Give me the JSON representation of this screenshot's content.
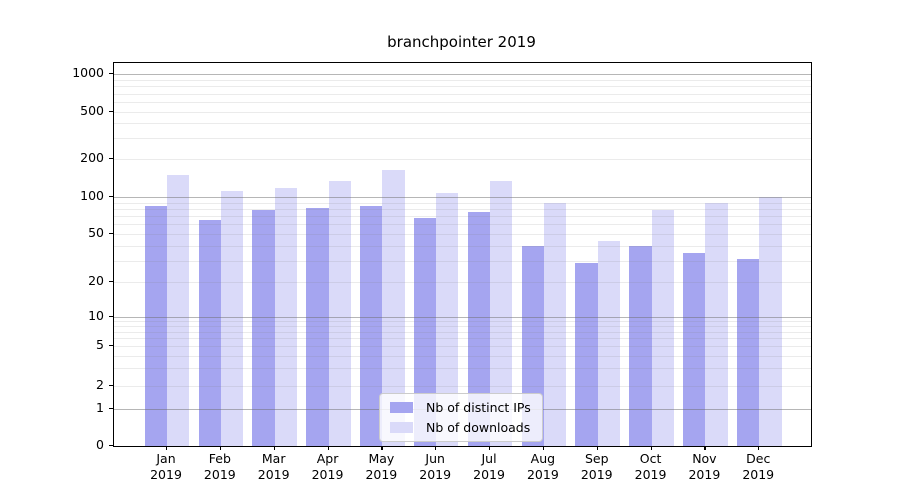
{
  "chart_data": {
    "type": "bar",
    "title": "branchpointer 2019",
    "y_scale": "symlog",
    "y_ticks": [
      0,
      1,
      2,
      5,
      10,
      20,
      50,
      100,
      200,
      500,
      1000
    ],
    "ylim": [
      0,
      1000
    ],
    "grid": true,
    "legend_position": "lower-center-inside",
    "categories": [
      "Jan 2019",
      "Feb 2019",
      "Mar 2019",
      "Apr 2019",
      "May 2019",
      "Jun 2019",
      "Jul 2019",
      "Aug 2019",
      "Sep 2019",
      "Oct 2019",
      "Nov 2019",
      "Dec 2019"
    ],
    "x_tick_labels": [
      {
        "month": "Jan",
        "year": "2019"
      },
      {
        "month": "Feb",
        "year": "2019"
      },
      {
        "month": "Mar",
        "year": "2019"
      },
      {
        "month": "Apr",
        "year": "2019"
      },
      {
        "month": "May",
        "year": "2019"
      },
      {
        "month": "Jun",
        "year": "2019"
      },
      {
        "month": "Jul",
        "year": "2019"
      },
      {
        "month": "Aug",
        "year": "2019"
      },
      {
        "month": "Sep",
        "year": "2019"
      },
      {
        "month": "Oct",
        "year": "2019"
      },
      {
        "month": "Nov",
        "year": "2019"
      },
      {
        "month": "Dec",
        "year": "2019"
      }
    ],
    "series": [
      {
        "name": "Nb of distinct IPs",
        "color": "#a5a5f0",
        "values": [
          85,
          65,
          78,
          82,
          84,
          67,
          76,
          40,
          29,
          40,
          35,
          31
        ]
      },
      {
        "name": "Nb of downloads",
        "color": "#dadaf9",
        "values": [
          150,
          112,
          117,
          135,
          163,
          107,
          133,
          89,
          44,
          79,
          90,
          100
        ]
      }
    ]
  },
  "colors": {
    "background": "#ffffff",
    "axis": "#000000",
    "major_grid": "#b5b5b5",
    "minor_grid": "#e9e9e9",
    "legend_border": "#cccccc"
  }
}
